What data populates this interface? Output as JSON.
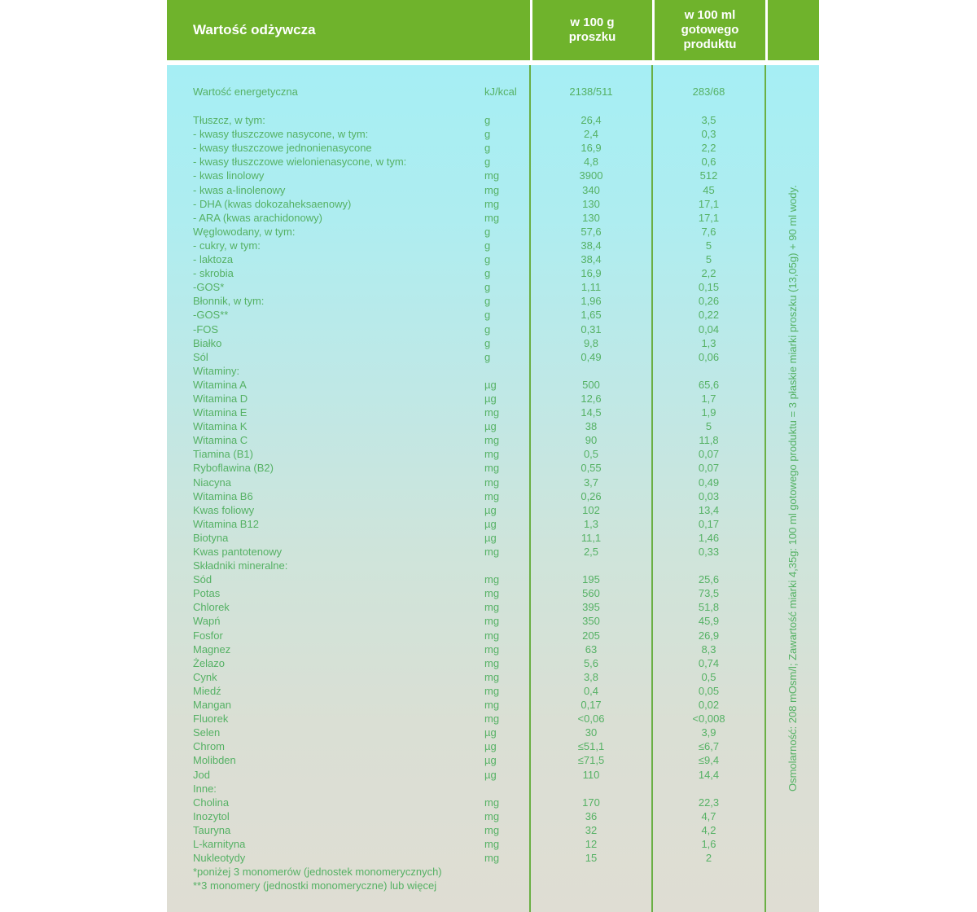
{
  "colors": {
    "header_green": "#6fb32c",
    "body_text_green": "#55b164",
    "separator_green": "#6aaf44",
    "header_text": "#ffffff",
    "body_bg_top": "#a6eef4",
    "body_bg_bottom": "#dfddd3"
  },
  "table": {
    "header": {
      "nutrition": "Wartość odżywcza",
      "per_100g": "w 100 g\nproszku",
      "per_100ml": "w 100 ml\ngotowego\nproduktu"
    },
    "rows": [
      {
        "class": "energy",
        "label": "Wartość energetyczna",
        "unit": "kJ/kcal",
        "v1": "2138/511",
        "v2": "283/68"
      },
      {
        "label": "Tłuszcz, w tym:",
        "unit": "g",
        "v1": "26,4",
        "v2": "3,5"
      },
      {
        "label": "- kwasy tłuszczowe nasycone, w tym:",
        "unit": "g",
        "v1": "2,4",
        "v2": "0,3"
      },
      {
        "label": "- kwasy tłuszczowe jednonienasycone",
        "unit": "g",
        "v1": "16,9",
        "v2": "2,2"
      },
      {
        "label": "- kwasy tłuszczowe wielonienasycone, w tym:",
        "unit": "g",
        "v1": "4,8",
        "v2": "0,6"
      },
      {
        "label": "- kwas linolowy",
        "unit": "mg",
        "v1": "3900",
        "v2": "512"
      },
      {
        "label": "- kwas a-linolenowy",
        "unit": "mg",
        "v1": "340",
        "v2": "45"
      },
      {
        "label": "- DHA (kwas dokozaheksaenowy)",
        "unit": "mg",
        "v1": "130",
        "v2": "17,1"
      },
      {
        "label": "- ARA (kwas arachidonowy)",
        "unit": "mg",
        "v1": "130",
        "v2": "17,1"
      },
      {
        "label": "Węglowodany, w tym:",
        "unit": "g",
        "v1": "57,6",
        "v2": "7,6"
      },
      {
        "label": "- cukry, w tym:",
        "unit": "g",
        "v1": "38,4",
        "v2": "5"
      },
      {
        "label": "- laktoza",
        "unit": "g",
        "v1": "38,4",
        "v2": "5"
      },
      {
        "label": "- skrobia",
        "unit": "g",
        "v1": "16,9",
        "v2": "2,2"
      },
      {
        "label": "-GOS*",
        "unit": "g",
        "v1": "1,11",
        "v2": "0,15"
      },
      {
        "label": "Błonnik, w tym:",
        "unit": "g",
        "v1": "1,96",
        "v2": "0,26"
      },
      {
        "label": "-GOS**",
        "unit": "g",
        "v1": "1,65",
        "v2": "0,22"
      },
      {
        "label": "-FOS",
        "unit": "g",
        "v1": "0,31",
        "v2": "0,04"
      },
      {
        "label": "Białko",
        "unit": "g",
        "v1": "9,8",
        "v2": "1,3"
      },
      {
        "label": "Sól",
        "unit": "g",
        "v1": "0,49",
        "v2": "0,06"
      },
      {
        "label": "Witaminy:",
        "unit": "",
        "v1": "",
        "v2": ""
      },
      {
        "label": "Witamina A",
        "unit": "µg",
        "v1": "500",
        "v2": "65,6"
      },
      {
        "label": "Witamina D",
        "unit": "µg",
        "v1": "12,6",
        "v2": "1,7"
      },
      {
        "label": "Witamina E",
        "unit": "mg",
        "v1": "14,5",
        "v2": "1,9"
      },
      {
        "label": "Witamina K",
        "unit": "µg",
        "v1": "38",
        "v2": "5"
      },
      {
        "label": "Witamina C",
        "unit": "mg",
        "v1": "90",
        "v2": "11,8"
      },
      {
        "label": "Tiamina (B1)",
        "unit": "mg",
        "v1": "0,5",
        "v2": "0,07"
      },
      {
        "label": "Ryboflawina (B2)",
        "unit": "mg",
        "v1": "0,55",
        "v2": "0,07"
      },
      {
        "label": "Niacyna",
        "unit": "mg",
        "v1": "3,7",
        "v2": "0,49"
      },
      {
        "label": "Witamina B6",
        "unit": "mg",
        "v1": "0,26",
        "v2": "0,03"
      },
      {
        "label": "Kwas foliowy",
        "unit": "µg",
        "v1": "102",
        "v2": "13,4"
      },
      {
        "label": "Witamina B12",
        "unit": "µg",
        "v1": "1,3",
        "v2": "0,17"
      },
      {
        "label": "Biotyna",
        "unit": "µg",
        "v1": "11,1",
        "v2": "1,46"
      },
      {
        "label": "Kwas pantotenowy",
        "unit": "mg",
        "v1": "2,5",
        "v2": "0,33"
      },
      {
        "label": "Składniki mineralne:",
        "unit": "",
        "v1": "",
        "v2": ""
      },
      {
        "label": "Sód",
        "unit": "mg",
        "v1": "195",
        "v2": "25,6"
      },
      {
        "label": "Potas",
        "unit": "mg",
        "v1": "560",
        "v2": "73,5"
      },
      {
        "label": "Chlorek",
        "unit": "mg",
        "v1": "395",
        "v2": "51,8"
      },
      {
        "label": "Wapń",
        "unit": "mg",
        "v1": "350",
        "v2": "45,9"
      },
      {
        "label": "Fosfor",
        "unit": "mg",
        "v1": "205",
        "v2": "26,9"
      },
      {
        "label": "Magnez",
        "unit": "mg",
        "v1": "63",
        "v2": "8,3"
      },
      {
        "label": "Żelazo",
        "unit": "mg",
        "v1": "5,6",
        "v2": "0,74"
      },
      {
        "label": "Cynk",
        "unit": "mg",
        "v1": "3,8",
        "v2": "0,5"
      },
      {
        "label": "Miedź",
        "unit": "mg",
        "v1": "0,4",
        "v2": "0,05"
      },
      {
        "label": "Mangan",
        "unit": "mg",
        "v1": "0,17",
        "v2": "0,02"
      },
      {
        "label": "Fluorek",
        "unit": "mg",
        "v1": "<0,06",
        "v2": "<0,008"
      },
      {
        "label": "Selen",
        "unit": "µg",
        "v1": "30",
        "v2": "3,9"
      },
      {
        "label": "Chrom",
        "unit": "µg",
        "v1": "≤51,1",
        "v2": "≤6,7"
      },
      {
        "label": "Molibden",
        "unit": "µg",
        "v1": "≤71,5",
        "v2": "≤9,4"
      },
      {
        "label": "Jod",
        "unit": "µg",
        "v1": "110",
        "v2": "14,4"
      },
      {
        "label": "Inne:",
        "unit": "",
        "v1": "",
        "v2": ""
      },
      {
        "label": "Cholina",
        "unit": "mg",
        "v1": "170",
        "v2": "22,3"
      },
      {
        "label": "Inozytol",
        "unit": "mg",
        "v1": "36",
        "v2": "4,7"
      },
      {
        "label": "Tauryna",
        "unit": "mg",
        "v1": "32",
        "v2": "4,2"
      },
      {
        "label": "L-karnityna",
        "unit": "mg",
        "v1": "12",
        "v2": "1,6"
      },
      {
        "label": "Nukleotydy",
        "unit": "mg",
        "v1": "15",
        "v2": "2"
      }
    ],
    "footnotes": [
      "*poniżej 3 monomerów (jednostek monomerycznych)",
      "**3 monomery (jednostki monomeryczne) lub więcej"
    ],
    "side_note": "Osmolarność: 208 mOsm/l; Zawartość miarki 4,35g: 100 ml gotowego produktu = 3 płaskie miarki proszku (13,05g) + 90 ml wody."
  }
}
